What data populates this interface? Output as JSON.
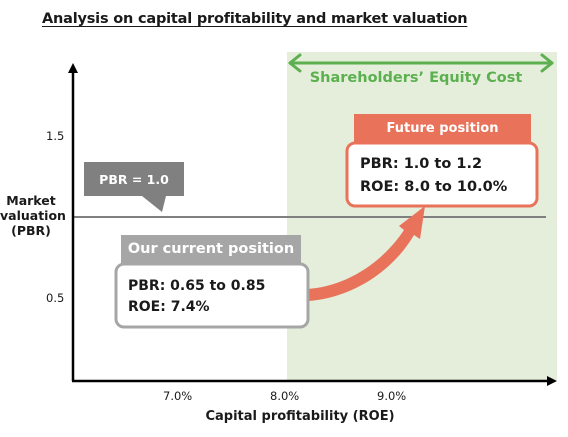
{
  "title": "Analysis on capital profitability and market valuation",
  "y_axis": {
    "label_lines": [
      "Market",
      "valuation",
      "(PBR)"
    ],
    "ticks": [
      {
        "label": "1.5",
        "value": 1.5
      },
      {
        "label": "0.5",
        "value": 0.5
      }
    ]
  },
  "x_axis": {
    "label": "Capital profitability (ROE)",
    "ticks": [
      {
        "label": "7.0%",
        "value": 7.0
      },
      {
        "label": "8.0%",
        "value": 8.0
      },
      {
        "label": "9.0%",
        "value": 9.0
      }
    ]
  },
  "shaded_region": {
    "label": "Shareholders’ Equity Cost",
    "color": "#e4eedb",
    "arrow_color": "#5cb04f"
  },
  "reference_line": {
    "label": "PBR = 1.0",
    "value": 1.0,
    "color": "#808080"
  },
  "current_position": {
    "header": "Our current position",
    "pbr": "PBR: 0.65 to 0.85",
    "roe": "ROE: 7.4%",
    "color": "#a6a6a6"
  },
  "future_position": {
    "header": "Future position",
    "pbr": "PBR: 1.0 to 1.2",
    "roe": "ROE: 8.0 to 10.0%",
    "color": "#e8735a"
  }
}
